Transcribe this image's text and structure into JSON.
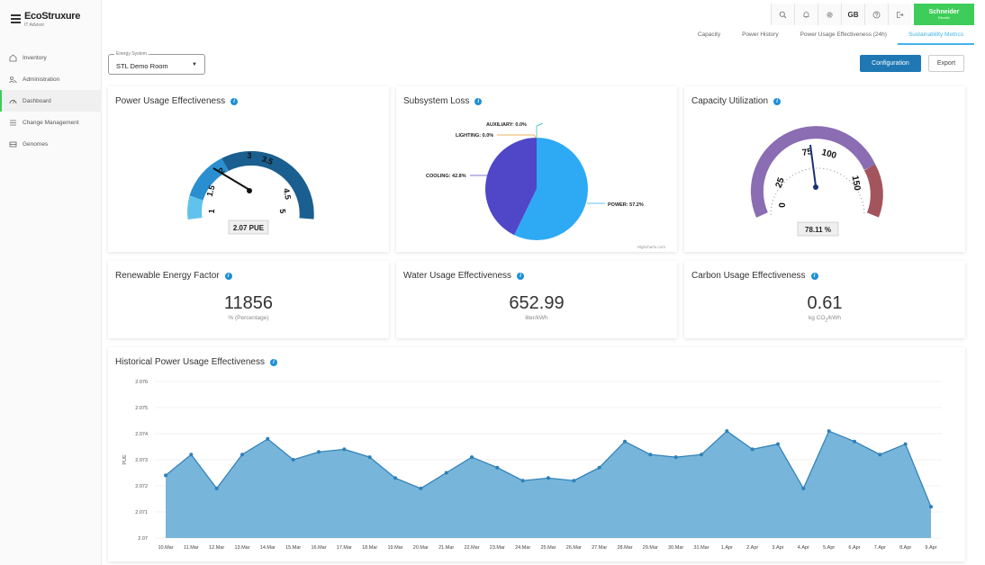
{
  "brand": {
    "logo_text": "EcoStruxure",
    "logo_sub": "IT Advisor",
    "partner_logo": "Schneider",
    "partner_logo_sub": "Electric"
  },
  "sidebar": {
    "items": [
      {
        "label": "Inventory",
        "icon": "home-icon"
      },
      {
        "label": "Administration",
        "icon": "admin-icon"
      },
      {
        "label": "Dashboard",
        "icon": "dashboard-icon"
      },
      {
        "label": "Change Management",
        "icon": "list-icon"
      },
      {
        "label": "Genomes",
        "icon": "genome-icon"
      }
    ],
    "active_index": 2
  },
  "topbar": {
    "initials": "GB"
  },
  "tabs": [
    {
      "label": "Capacity"
    },
    {
      "label": "Power History"
    },
    {
      "label": "Power Usage Effectiveness (24h)"
    },
    {
      "label": "Sustainability Metrics"
    }
  ],
  "active_tab": 3,
  "energy_system": {
    "label": "Energy System",
    "value": "STL Demo Room"
  },
  "buttons": {
    "configuration": "Configuration",
    "export": "Export"
  },
  "pue_card": {
    "title": "Power Usage Effectiveness",
    "value": 2.07,
    "value_label": "2.07 PUE",
    "min": 1,
    "max": 5,
    "ticks": [
      "1",
      "1.5",
      "2",
      "3",
      "3.5",
      "4.5",
      "5"
    ]
  },
  "subsystem_card": {
    "title": "Subsystem Loss",
    "credit": "Highcharts.com",
    "colors": {
      "power": "#2eaaf5",
      "cooling": "#5046c8"
    }
  },
  "capacity_card": {
    "title": "Capacity Utilization",
    "value": 78.11,
    "value_label": "78.11 %",
    "min": 0,
    "max": 175,
    "ticks": [
      "0",
      "25",
      "75",
      "100",
      "150"
    ]
  },
  "renewable_card": {
    "title": "Renewable Energy Factor",
    "value": "11856",
    "unit": "% (Percentage)"
  },
  "water_card": {
    "title": "Water Usage Effectiveness",
    "value": "652.99",
    "unit": "liter/kWh"
  },
  "carbon_card": {
    "title": "Carbon Usage Effectiveness",
    "value": "0.61",
    "unit_main": "kg CO",
    "unit_sub": "2",
    "unit_tail": "/kWh"
  },
  "history_card": {
    "title": "Historical Power Usage Effectiveness"
  },
  "colors": {
    "accent": "#42b4e6",
    "primary_button": "#1f78b4",
    "brand_green": "#3dcd58",
    "area_fill": "#5fa8d3",
    "area_line": "#2d7fb8",
    "info": "#1e8fd6"
  },
  "chart_data": [
    {
      "type": "pie",
      "title": "Subsystem Loss",
      "categories": [
        "POWER",
        "COOLING",
        "LIGHTING",
        "AUXILIARY"
      ],
      "values": [
        57.2,
        42.8,
        0.0,
        0.0
      ],
      "labels": [
        "POWER: 57.2%",
        "COOLING: 42.8%",
        "LIGHTING: 0.0%",
        "AUXILIARY: 0.0%"
      ]
    },
    {
      "type": "area",
      "title": "Historical Power Usage Effectiveness",
      "ylabel": "PUE",
      "ylim": [
        2.07,
        2.076
      ],
      "yticks": [
        "2.07",
        "2.071",
        "2.072",
        "2.073",
        "2.074",
        "2.075",
        "2.076"
      ],
      "categories": [
        "10.Mar",
        "11.Mar",
        "12.Mar",
        "13.Mar",
        "14.Mar",
        "15.Mar",
        "16.Mar",
        "17.Mar",
        "18.Mar",
        "19.Mar",
        "20.Mar",
        "21.Mar",
        "22.Mar",
        "23.Mar",
        "24.Mar",
        "25.Mar",
        "26.Mar",
        "27.Mar",
        "28.Mar",
        "29.Mar",
        "30.Mar",
        "31.Mar",
        "1.Apr",
        "2.Apr",
        "3.Apr",
        "4.Apr",
        "5.Apr",
        "6.Apr",
        "7.Apr",
        "8.Apr",
        "9.Apr"
      ],
      "values": [
        2.0724,
        2.0732,
        2.0719,
        2.0732,
        2.0738,
        2.073,
        2.0733,
        2.0734,
        2.0731,
        2.0723,
        2.0719,
        2.0725,
        2.0731,
        2.0727,
        2.0722,
        2.0723,
        2.0722,
        2.0727,
        2.0737,
        2.0732,
        2.0731,
        2.0732,
        2.0741,
        2.0734,
        2.0736,
        2.0719,
        2.0741,
        2.0737,
        2.0732,
        2.0736,
        2.0712
      ]
    }
  ]
}
